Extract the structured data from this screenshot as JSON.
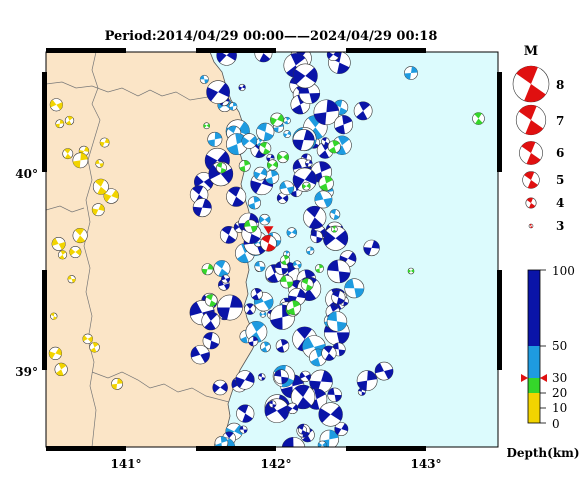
{
  "title": "Period:2014/04/29 00:00——2024/04/29 00:18",
  "axes": {
    "x_ticks": [
      {
        "label": "141°",
        "lon": 141
      },
      {
        "label": "142°",
        "lon": 142
      },
      {
        "label": "143°",
        "lon": 143
      }
    ],
    "y_ticks": [
      {
        "label": "40°",
        "lat": 40
      },
      {
        "label": "39°",
        "lat": 39
      }
    ],
    "lon_range": [
      140.5,
      143.5
    ],
    "lat_range": [
      38.6,
      40.6
    ]
  },
  "magnitude_legend": {
    "title": "M",
    "entries": [
      {
        "label": "8",
        "m": 8
      },
      {
        "label": "7",
        "m": 7
      },
      {
        "label": "6",
        "m": 6
      },
      {
        "label": "5",
        "m": 5
      },
      {
        "label": "4",
        "m": 4
      },
      {
        "label": "3",
        "m": 3
      }
    ]
  },
  "depth_scale": {
    "title": "Depth(km)",
    "ticks": [
      "100",
      "50",
      "30",
      "20",
      "10",
      "0"
    ],
    "bands": [
      {
        "from": 0,
        "to": 10,
        "color": "#f2d400"
      },
      {
        "from": 10,
        "to": 20,
        "color": "#f2d400"
      },
      {
        "from": 20,
        "to": 30,
        "color": "#35d62a"
      },
      {
        "from": 30,
        "to": 50,
        "color": "#1e9be0"
      },
      {
        "from": 50,
        "to": 100,
        "color": "#0a14a8"
      }
    ],
    "marker_depth": 30,
    "marker_color": "#e01010"
  },
  "colors": {
    "land": "#fbe5c7",
    "sea": "#dcfbfd",
    "latest_event": "#e01010",
    "frame": "#000000"
  },
  "latest_event": {
    "lon": 141.95,
    "lat": 39.64,
    "m": 5,
    "depth_km": 30
  }
}
